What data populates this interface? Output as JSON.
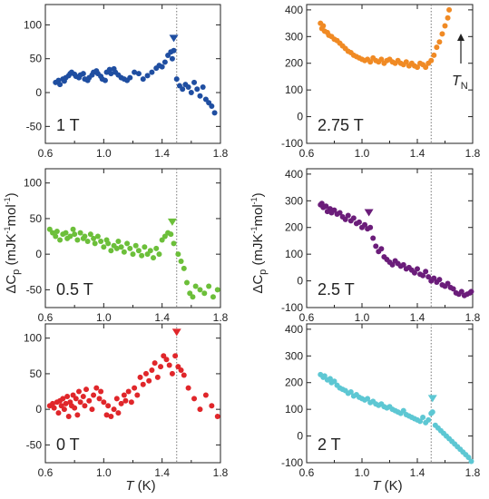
{
  "figure": {
    "ylabel_left": "ΔC",
    "ylabel_sub": "p",
    "ylabel_units_left": " (mJK",
    "ylabel_units_mid": "mol",
    "ylabel_units_right": ")",
    "ylabel_exp": "-1",
    "xlabel_T": "T",
    "xlabel_units": " (K)",
    "tn_label": "T",
    "tn_sub": "N"
  },
  "chart_data": [
    {
      "type": "scatter",
      "panel": "left-top",
      "label": "1 T",
      "color": "#1f4ea1",
      "xlim": [
        0.6,
        1.8
      ],
      "ylim": [
        -75,
        130
      ],
      "yticks": [
        -50,
        0,
        50,
        100
      ],
      "xticks": [
        0.6,
        1.0,
        1.4,
        1.8
      ],
      "dotted_line_x": 1.5,
      "marker_x": 1.48,
      "marker_y": 80,
      "x": [
        0.67,
        0.69,
        0.7,
        0.72,
        0.73,
        0.74,
        0.76,
        0.77,
        0.78,
        0.8,
        0.81,
        0.83,
        0.84,
        0.86,
        0.87,
        0.89,
        0.9,
        0.92,
        0.93,
        0.95,
        0.96,
        0.98,
        0.99,
        1.01,
        1.02,
        1.04,
        1.05,
        1.07,
        1.08,
        1.1,
        1.12,
        1.14,
        1.16,
        1.18,
        1.21,
        1.24,
        1.27,
        1.3,
        1.33,
        1.36,
        1.38,
        1.4,
        1.42,
        1.44,
        1.46,
        1.47,
        1.48,
        1.5,
        1.52,
        1.54,
        1.56,
        1.58,
        1.6,
        1.62,
        1.64,
        1.66,
        1.68,
        1.7,
        1.72,
        1.74,
        1.76
      ],
      "y": [
        15,
        18,
        12,
        20,
        17,
        22,
        25,
        28,
        30,
        27,
        24,
        22,
        26,
        28,
        20,
        18,
        22,
        26,
        30,
        32,
        28,
        24,
        20,
        18,
        30,
        34,
        28,
        35,
        30,
        26,
        22,
        20,
        18,
        22,
        30,
        28,
        20,
        25,
        30,
        36,
        40,
        38,
        45,
        55,
        60,
        50,
        62,
        20,
        10,
        5,
        12,
        8,
        0,
        15,
        5,
        -5,
        8,
        -10,
        -15,
        -20,
        -30
      ]
    },
    {
      "type": "scatter",
      "panel": "right-top",
      "label": "2.75 T",
      "color": "#f08a24",
      "xlim": [
        0.6,
        1.8
      ],
      "ylim": [
        -100,
        420
      ],
      "yticks": [
        -100,
        0,
        100,
        200,
        300,
        400
      ],
      "xticks": [
        0.6,
        1.0,
        1.4,
        1.8
      ],
      "dotted_line_x": 1.5,
      "x": [
        0.7,
        0.71,
        0.72,
        0.73,
        0.75,
        0.76,
        0.78,
        0.8,
        0.82,
        0.84,
        0.86,
        0.88,
        0.9,
        0.92,
        0.94,
        0.96,
        0.98,
        1.0,
        1.02,
        1.04,
        1.06,
        1.08,
        1.1,
        1.12,
        1.14,
        1.16,
        1.18,
        1.2,
        1.22,
        1.24,
        1.26,
        1.28,
        1.3,
        1.32,
        1.34,
        1.36,
        1.38,
        1.4,
        1.42,
        1.44,
        1.46,
        1.48,
        1.5,
        1.52,
        1.54,
        1.56,
        1.58,
        1.6,
        1.62,
        1.63
      ],
      "y": [
        350,
        330,
        340,
        320,
        315,
        305,
        300,
        290,
        285,
        275,
        265,
        255,
        245,
        240,
        230,
        225,
        220,
        215,
        210,
        215,
        205,
        220,
        210,
        205,
        215,
        200,
        210,
        215,
        205,
        200,
        210,
        200,
        195,
        205,
        190,
        200,
        190,
        185,
        200,
        195,
        185,
        200,
        210,
        230,
        260,
        280,
        310,
        340,
        370,
        400
      ]
    },
    {
      "type": "scatter",
      "panel": "left-middle",
      "label": "0.5 T",
      "color": "#6cbf3a",
      "xlim": [
        0.6,
        1.8
      ],
      "ylim": [
        -75,
        120
      ],
      "yticks": [
        -50,
        0,
        50,
        100
      ],
      "xticks": [
        0.6,
        1.0,
        1.4,
        1.8
      ],
      "dotted_line_x": 1.5,
      "marker_x": 1.47,
      "marker_y": 45,
      "x": [
        0.63,
        0.65,
        0.67,
        0.68,
        0.7,
        0.72,
        0.74,
        0.75,
        0.77,
        0.79,
        0.8,
        0.82,
        0.84,
        0.86,
        0.87,
        0.89,
        0.91,
        0.93,
        0.94,
        0.96,
        0.98,
        1.0,
        1.02,
        1.03,
        1.05,
        1.07,
        1.09,
        1.1,
        1.12,
        1.14,
        1.16,
        1.18,
        1.2,
        1.22,
        1.24,
        1.26,
        1.28,
        1.3,
        1.32,
        1.34,
        1.36,
        1.38,
        1.4,
        1.42,
        1.44,
        1.46,
        1.48,
        1.51,
        1.53,
        1.55,
        1.57,
        1.59,
        1.61,
        1.63,
        1.66,
        1.69,
        1.72,
        1.75,
        1.78
      ],
      "y": [
        35,
        30,
        25,
        32,
        20,
        28,
        30,
        22,
        25,
        35,
        28,
        20,
        30,
        22,
        25,
        18,
        28,
        22,
        15,
        25,
        18,
        10,
        20,
        15,
        5,
        12,
        8,
        18,
        10,
        3,
        15,
        8,
        0,
        12,
        5,
        -2,
        10,
        0,
        5,
        -5,
        8,
        0,
        20,
        25,
        30,
        28,
        15,
        0,
        -10,
        -20,
        -40,
        -55,
        -60,
        -45,
        -50,
        -55,
        -45,
        -60,
        -50
      ]
    },
    {
      "type": "scatter",
      "panel": "right-middle",
      "label": "2.5 T",
      "color": "#6b1d7a",
      "xlim": [
        0.6,
        1.8
      ],
      "ylim": [
        -100,
        420
      ],
      "yticks": [
        -100,
        0,
        100,
        200,
        300,
        400
      ],
      "xticks": [
        0.6,
        1.0,
        1.4,
        1.8
      ],
      "dotted_line_x": 1.5,
      "marker_x": 1.05,
      "marker_y": 255,
      "x": [
        0.7,
        0.71,
        0.72,
        0.74,
        0.75,
        0.77,
        0.78,
        0.8,
        0.82,
        0.84,
        0.86,
        0.88,
        0.9,
        0.92,
        0.94,
        0.96,
        0.98,
        1.0,
        1.02,
        1.04,
        1.06,
        1.08,
        1.1,
        1.12,
        1.14,
        1.16,
        1.18,
        1.2,
        1.22,
        1.24,
        1.26,
        1.28,
        1.3,
        1.32,
        1.34,
        1.36,
        1.38,
        1.4,
        1.42,
        1.44,
        1.46,
        1.48,
        1.5,
        1.52,
        1.54,
        1.56,
        1.58,
        1.6,
        1.62,
        1.64,
        1.66,
        1.68,
        1.7,
        1.72,
        1.74,
        1.76,
        1.78,
        1.79
      ],
      "y": [
        285,
        290,
        275,
        280,
        260,
        270,
        255,
        265,
        250,
        255,
        240,
        230,
        245,
        225,
        235,
        215,
        220,
        200,
        210,
        195,
        200,
        160,
        130,
        110,
        120,
        90,
        80,
        70,
        60,
        75,
        65,
        55,
        60,
        45,
        50,
        40,
        30,
        45,
        25,
        20,
        35,
        15,
        0,
        10,
        -5,
        5,
        -15,
        -20,
        -10,
        -25,
        -30,
        -45,
        -50,
        -40,
        -55,
        -50,
        -45,
        -40
      ]
    },
    {
      "type": "scatter",
      "panel": "left-bottom",
      "label": "0 T",
      "color": "#e0262a",
      "xlim": [
        0.6,
        1.8
      ],
      "ylim": [
        -75,
        120
      ],
      "yticks": [
        -50,
        0,
        50,
        100
      ],
      "xticks": [
        0.6,
        1.0,
        1.4,
        1.8
      ],
      "dotted_line_x": 1.5,
      "marker_x": 1.5,
      "marker_y": 108,
      "x": [
        0.63,
        0.65,
        0.66,
        0.68,
        0.69,
        0.7,
        0.71,
        0.72,
        0.73,
        0.74,
        0.75,
        0.76,
        0.77,
        0.78,
        0.79,
        0.8,
        0.81,
        0.82,
        0.83,
        0.84,
        0.86,
        0.87,
        0.88,
        0.9,
        0.92,
        0.93,
        0.95,
        0.97,
        0.98,
        1.0,
        1.02,
        1.03,
        1.05,
        1.07,
        1.09,
        1.1,
        1.12,
        1.14,
        1.15,
        1.17,
        1.19,
        1.21,
        1.23,
        1.25,
        1.27,
        1.29,
        1.31,
        1.33,
        1.35,
        1.37,
        1.39,
        1.41,
        1.43,
        1.45,
        1.47,
        1.49,
        1.51,
        1.53,
        1.55,
        1.58,
        1.62,
        1.66,
        1.7,
        1.74,
        1.78
      ],
      "y": [
        5,
        8,
        2,
        10,
        -5,
        12,
        5,
        15,
        0,
        8,
        18,
        -10,
        10,
        5,
        20,
        2,
        15,
        -8,
        25,
        10,
        18,
        5,
        28,
        12,
        0,
        20,
        30,
        15,
        25,
        10,
        -8,
        5,
        -10,
        0,
        15,
        -5,
        8,
        20,
        12,
        25,
        10,
        30,
        20,
        45,
        35,
        50,
        40,
        55,
        65,
        45,
        60,
        75,
        70,
        62,
        50,
        75,
        60,
        55,
        48,
        30,
        15,
        0,
        20,
        5,
        -10
      ]
    },
    {
      "type": "scatter",
      "panel": "right-bottom",
      "label": "2 T",
      "color": "#5dc7d3",
      "xlim": [
        0.6,
        1.8
      ],
      "ylim": [
        -100,
        420
      ],
      "yticks": [
        -100,
        0,
        100,
        200,
        300,
        400
      ],
      "xticks": [
        0.6,
        1.0,
        1.4,
        1.8
      ],
      "dotted_line_x": 1.5,
      "marker_x": 1.51,
      "marker_y": 140,
      "x": [
        0.7,
        0.72,
        0.73,
        0.75,
        0.77,
        0.78,
        0.8,
        0.82,
        0.84,
        0.86,
        0.88,
        0.9,
        0.92,
        0.94,
        0.96,
        0.98,
        1.0,
        1.02,
        1.04,
        1.06,
        1.08,
        1.1,
        1.12,
        1.14,
        1.16,
        1.18,
        1.2,
        1.22,
        1.24,
        1.26,
        1.28,
        1.3,
        1.32,
        1.34,
        1.36,
        1.38,
        1.4,
        1.42,
        1.44,
        1.46,
        1.48,
        1.5,
        1.51,
        1.53,
        1.55,
        1.57,
        1.59,
        1.61,
        1.63,
        1.65,
        1.67,
        1.69,
        1.71,
        1.73,
        1.75,
        1.77,
        1.79
      ],
      "y": [
        230,
        220,
        225,
        210,
        215,
        200,
        205,
        190,
        180,
        175,
        170,
        160,
        165,
        150,
        155,
        145,
        140,
        135,
        140,
        125,
        130,
        120,
        115,
        120,
        110,
        105,
        110,
        100,
        95,
        90,
        85,
        95,
        80,
        75,
        70,
        65,
        60,
        55,
        70,
        50,
        60,
        85,
        90,
        40,
        30,
        20,
        10,
        0,
        -10,
        -20,
        -30,
        -40,
        -50,
        -60,
        -70,
        -80,
        -95
      ]
    }
  ]
}
